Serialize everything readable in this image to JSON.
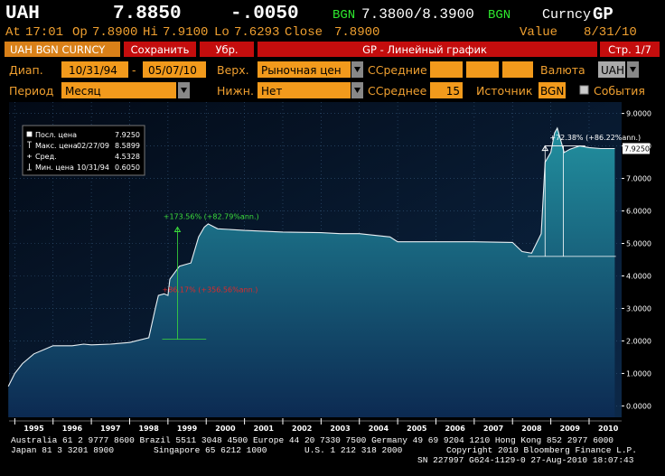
{
  "header": {
    "ticker": "UAH",
    "price": "7.8850",
    "change": "-.0050",
    "source1": "BGN",
    "bid_ask": "7.3800/8.3900",
    "source2": "BGN",
    "security": "Curncy",
    "function": "GP"
  },
  "quote": {
    "time_label": "At",
    "time": "17:01",
    "open_label": "Op",
    "open": "7.8900",
    "high_label": "Hi",
    "high": "7.9100",
    "low_label": "Lo",
    "low": "7.6293",
    "close_label": "Close",
    "close": "7.8900",
    "value_label": "Value",
    "value_date": "8/31/10"
  },
  "toolbar": {
    "security": "UAH BGN CURNCY",
    "save": "Сохранить",
    "remove": "Убр.",
    "title": "GP - Линейный график",
    "page": "Стр. 1/7"
  },
  "settings": {
    "range_label": "Диап.",
    "range_from": "10/31/94",
    "range_sep": "-",
    "range_to": "05/07/10",
    "upper_label": "Верх.",
    "upper": "Рыночная цен",
    "ma_label": "ССредние",
    "currency_label": "Валюта",
    "currency": "UAH",
    "period_label": "Период",
    "period": "Месяц",
    "lower_label": "Нижн.",
    "lower": "Нет",
    "avg_label": "ССреднее",
    "avg": "15",
    "source_label": "Источник",
    "source": "BGN",
    "events_label": "События"
  },
  "chart_data": {
    "type": "area",
    "x": [
      1994.83,
      1995.0,
      1995.2,
      1995.5,
      1995.8,
      1996.0,
      1996.5,
      1996.8,
      1997.0,
      1997.5,
      1998.0,
      1998.5,
      1998.67,
      1998.75,
      1998.9,
      1999.0,
      1999.05,
      1999.3,
      1999.6,
      1999.8,
      1999.95,
      2000.05,
      2000.3,
      2000.6,
      2001.0,
      2002.0,
      2003.0,
      2003.5,
      2004.0,
      2004.8,
      2005.0,
      2006.0,
      2007.0,
      2008.0,
      2008.25,
      2008.5,
      2008.75,
      2008.85,
      2009.0,
      2009.1,
      2009.17,
      2009.35,
      2009.5,
      2009.75,
      2010.0,
      2010.3,
      2010.67
    ],
    "series": [
      {
        "name": "Посл. цена",
        "color": "#e8f0f4",
        "values": [
          0.6,
          1.0,
          1.3,
          1.6,
          1.75,
          1.85,
          1.85,
          1.9,
          1.88,
          1.9,
          1.95,
          2.1,
          3.0,
          3.4,
          3.45,
          3.4,
          3.9,
          4.3,
          4.4,
          5.2,
          5.5,
          5.6,
          5.45,
          5.43,
          5.4,
          5.35,
          5.33,
          5.3,
          5.3,
          5.2,
          5.05,
          5.05,
          5.05,
          5.03,
          4.75,
          4.7,
          5.3,
          7.5,
          7.8,
          8.4,
          8.55,
          7.8,
          7.9,
          8.0,
          7.95,
          7.92,
          7.92
        ]
      }
    ],
    "xlim": [
      1994.85,
      2010.85
    ],
    "xticks": [
      1995,
      1996,
      1997,
      1998,
      1999,
      2000,
      2001,
      2002,
      2003,
      2004,
      2005,
      2006,
      2007,
      2008,
      2009,
      2010
    ],
    "ylim": [
      -0.35,
      9.35
    ],
    "yticks": [
      {
        "value": 0,
        "label": "0.0000"
      },
      {
        "value": 1,
        "label": "1.0000"
      },
      {
        "value": 2,
        "label": "2.0000"
      },
      {
        "value": 3,
        "label": "3.0000"
      },
      {
        "value": 4,
        "label": "4.0000"
      },
      {
        "value": 5,
        "label": "5.0000"
      },
      {
        "value": 6,
        "label": "6.0000"
      },
      {
        "value": 7,
        "label": "7.0000"
      },
      {
        "value": 8,
        "label": "8.0000"
      },
      {
        "value": 9,
        "label": "9.0000"
      }
    ],
    "grid": true,
    "legend": [
      {
        "label": "Посл. цена",
        "value": "7.9250"
      },
      {
        "label": "Макс. цена",
        "date": "02/27/09",
        "value": "8.5899"
      },
      {
        "label": "Сред.",
        "value": "4.5328"
      },
      {
        "label": "Мин. цена",
        "date": "10/31/94",
        "value": "0.6050"
      }
    ],
    "annotations": [
      {
        "text": "+173.56% (+82.79%ann.)",
        "color": "#3cdc3c"
      },
      {
        "text": "+86.17% (+356.56%ann.)",
        "color": "#e02828"
      },
      {
        "text": "+72.38% (+86.22%ann.)",
        "color": "#ffffff"
      }
    ]
  },
  "footer": [
    "Australia 61 2 9777 8600 Brazil 5511 3048 4500 Europe 44 20 7330 7500 Germany 49 69 9204 1210 Hong Kong 852 2977 6000",
    "Japan 81 3 3201 8900",
    "Singapore 65 6212 1000",
    "U.S. 1 212 318 2000",
    "Copyright 2010 Bloomberg Finance L.P.",
    "SN 227997 G624-1129-0 27-Aug-2010 18:07:43"
  ]
}
